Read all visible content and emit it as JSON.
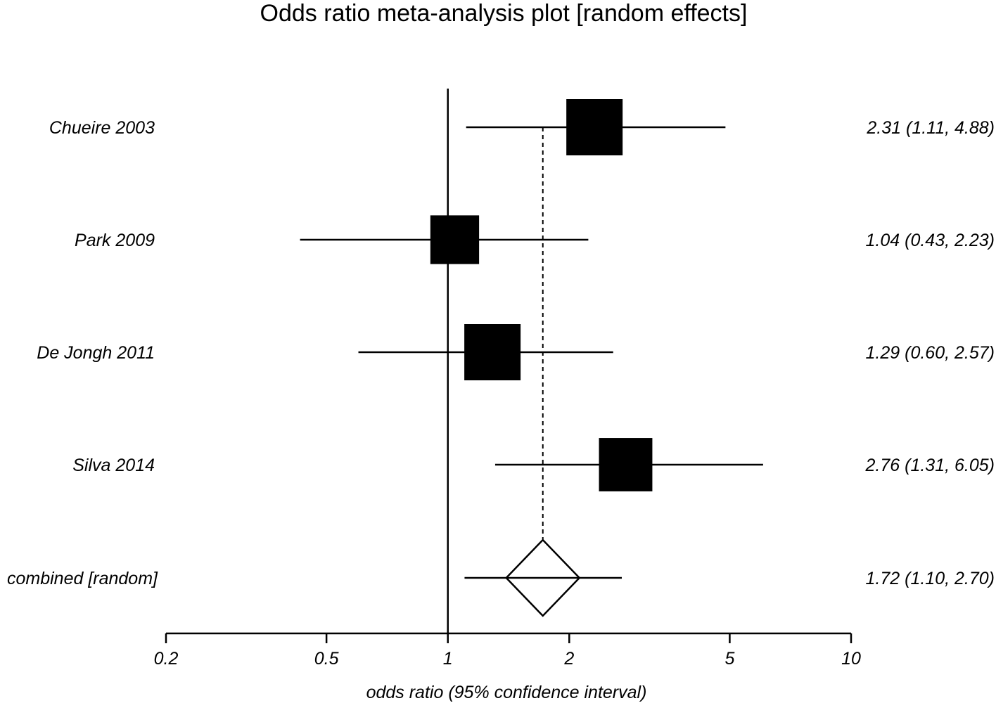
{
  "chart_data": {
    "type": "forest",
    "title": "Odds ratio meta-analysis plot [random effects]",
    "xlabel": "odds ratio (95% confidence interval)",
    "x_scale": "log",
    "xlim": [
      0.2,
      10
    ],
    "x_ticks": [
      0.2,
      0.5,
      1,
      2,
      5,
      10
    ],
    "x_tick_labels": [
      "0.2",
      "0.5",
      "1",
      "2",
      "5",
      "10"
    ],
    "reference_line": 1,
    "studies": [
      {
        "name": "Chueire 2003",
        "or": 2.31,
        "lower": 1.11,
        "upper": 4.88,
        "label": "2.31 (1.11, 4.88)",
        "weight": 1.0
      },
      {
        "name": "Park 2009",
        "or": 1.04,
        "lower": 0.43,
        "upper": 2.23,
        "label": "1.04 (0.43, 2.23)",
        "weight": 0.75
      },
      {
        "name": "De Jongh 2011",
        "or": 1.29,
        "lower": 0.6,
        "upper": 2.57,
        "label": "1.29 (0.60, 2.57)",
        "weight": 1.0
      },
      {
        "name": "Silva 2014",
        "or": 2.76,
        "lower": 1.31,
        "upper": 6.05,
        "label": "2.76 (1.31, 6.05)",
        "weight": 0.9
      }
    ],
    "combined": {
      "name": "combined [random]",
      "or": 1.72,
      "lower": 1.1,
      "upper": 2.7,
      "label": "1.72 (1.10, 2.70)"
    }
  }
}
